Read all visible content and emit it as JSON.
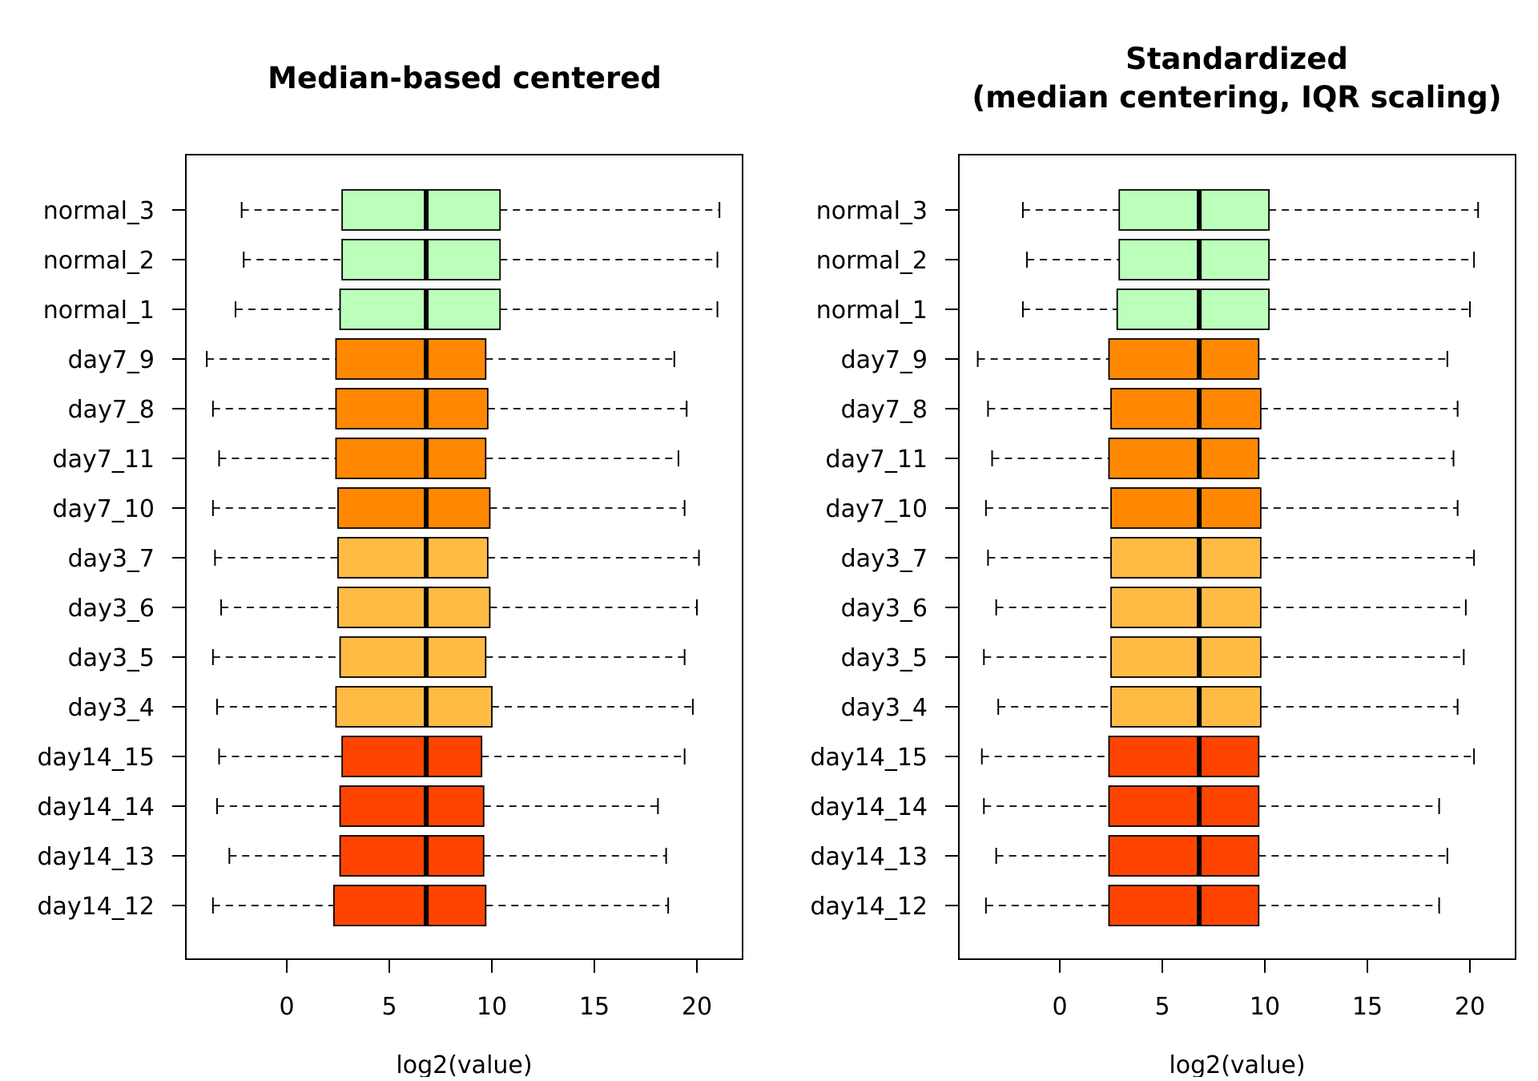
{
  "colors": {
    "normal": "#BBFFBB",
    "day7": "#FF8800",
    "day3": "#FFBB44",
    "day14": "#FF4400"
  },
  "chart_data": [
    {
      "type": "boxplot",
      "orientation": "horizontal",
      "title": "Median-based centered",
      "xlabel": "log2(value)",
      "ylabel": "",
      "xlim": [
        -4.5,
        22.5
      ],
      "xticks": [
        0,
        5,
        10,
        15,
        20
      ],
      "grid": false,
      "legend": "none",
      "series": [
        {
          "name": "normal_3",
          "group": "normal",
          "whisker_low": -2.2,
          "q1": 2.7,
          "median": 6.8,
          "q3": 10.4,
          "whisker_high": 21.1
        },
        {
          "name": "normal_2",
          "group": "normal",
          "whisker_low": -2.1,
          "q1": 2.7,
          "median": 6.8,
          "q3": 10.4,
          "whisker_high": 21.0
        },
        {
          "name": "normal_1",
          "group": "normal",
          "whisker_low": -2.5,
          "q1": 2.6,
          "median": 6.8,
          "q3": 10.4,
          "whisker_high": 21.0
        },
        {
          "name": "day7_9",
          "group": "day7",
          "whisker_low": -3.9,
          "q1": 2.4,
          "median": 6.8,
          "q3": 9.7,
          "whisker_high": 18.9
        },
        {
          "name": "day7_8",
          "group": "day7",
          "whisker_low": -3.6,
          "q1": 2.4,
          "median": 6.8,
          "q3": 9.8,
          "whisker_high": 19.5
        },
        {
          "name": "day7_11",
          "group": "day7",
          "whisker_low": -3.3,
          "q1": 2.4,
          "median": 6.8,
          "q3": 9.7,
          "whisker_high": 19.1
        },
        {
          "name": "day7_10",
          "group": "day7",
          "whisker_low": -3.6,
          "q1": 2.5,
          "median": 6.8,
          "q3": 9.9,
          "whisker_high": 19.4
        },
        {
          "name": "day3_7",
          "group": "day3",
          "whisker_low": -3.5,
          "q1": 2.5,
          "median": 6.8,
          "q3": 9.8,
          "whisker_high": 20.1
        },
        {
          "name": "day3_6",
          "group": "day3",
          "whisker_low": -3.2,
          "q1": 2.5,
          "median": 6.8,
          "q3": 9.9,
          "whisker_high": 20.0
        },
        {
          "name": "day3_5",
          "group": "day3",
          "whisker_low": -3.6,
          "q1": 2.6,
          "median": 6.8,
          "q3": 9.7,
          "whisker_high": 19.4
        },
        {
          "name": "day3_4",
          "group": "day3",
          "whisker_low": -3.4,
          "q1": 2.4,
          "median": 6.8,
          "q3": 10.0,
          "whisker_high": 19.8
        },
        {
          "name": "day14_15",
          "group": "day14",
          "whisker_low": -3.3,
          "q1": 2.7,
          "median": 6.8,
          "q3": 9.5,
          "whisker_high": 19.4
        },
        {
          "name": "day14_14",
          "group": "day14",
          "whisker_low": -3.4,
          "q1": 2.6,
          "median": 6.8,
          "q3": 9.6,
          "whisker_high": 18.1
        },
        {
          "name": "day14_13",
          "group": "day14",
          "whisker_low": -2.8,
          "q1": 2.6,
          "median": 6.8,
          "q3": 9.6,
          "whisker_high": 18.5
        },
        {
          "name": "day14_12",
          "group": "day14",
          "whisker_low": -3.6,
          "q1": 2.3,
          "median": 6.8,
          "q3": 9.7,
          "whisker_high": 18.6
        }
      ]
    },
    {
      "type": "boxplot",
      "orientation": "horizontal",
      "title": "Standardized\n(median centering, IQR scaling)",
      "xlabel": "log2(value)",
      "ylabel": "",
      "xlim": [
        -4.5,
        22.5
      ],
      "xticks": [
        0,
        5,
        10,
        15,
        20
      ],
      "grid": false,
      "legend": "none",
      "series": [
        {
          "name": "normal_3",
          "group": "normal",
          "whisker_low": -1.8,
          "q1": 2.9,
          "median": 6.8,
          "q3": 10.2,
          "whisker_high": 20.4
        },
        {
          "name": "normal_2",
          "group": "normal",
          "whisker_low": -1.6,
          "q1": 2.9,
          "median": 6.8,
          "q3": 10.2,
          "whisker_high": 20.2
        },
        {
          "name": "normal_1",
          "group": "normal",
          "whisker_low": -1.8,
          "q1": 2.8,
          "median": 6.8,
          "q3": 10.2,
          "whisker_high": 20.0
        },
        {
          "name": "day7_9",
          "group": "day7",
          "whisker_low": -4.0,
          "q1": 2.4,
          "median": 6.8,
          "q3": 9.7,
          "whisker_high": 18.9
        },
        {
          "name": "day7_8",
          "group": "day7",
          "whisker_low": -3.5,
          "q1": 2.5,
          "median": 6.8,
          "q3": 9.8,
          "whisker_high": 19.4
        },
        {
          "name": "day7_11",
          "group": "day7",
          "whisker_low": -3.3,
          "q1": 2.4,
          "median": 6.8,
          "q3": 9.7,
          "whisker_high": 19.2
        },
        {
          "name": "day7_10",
          "group": "day7",
          "whisker_low": -3.6,
          "q1": 2.5,
          "median": 6.8,
          "q3": 9.8,
          "whisker_high": 19.4
        },
        {
          "name": "day3_7",
          "group": "day3",
          "whisker_low": -3.5,
          "q1": 2.5,
          "median": 6.8,
          "q3": 9.8,
          "whisker_high": 20.2
        },
        {
          "name": "day3_6",
          "group": "day3",
          "whisker_low": -3.1,
          "q1": 2.5,
          "median": 6.8,
          "q3": 9.8,
          "whisker_high": 19.8
        },
        {
          "name": "day3_5",
          "group": "day3",
          "whisker_low": -3.7,
          "q1": 2.5,
          "median": 6.8,
          "q3": 9.8,
          "whisker_high": 19.7
        },
        {
          "name": "day3_4",
          "group": "day3",
          "whisker_low": -3.0,
          "q1": 2.5,
          "median": 6.8,
          "q3": 9.8,
          "whisker_high": 19.4
        },
        {
          "name": "day14_15",
          "group": "day14",
          "whisker_low": -3.8,
          "q1": 2.4,
          "median": 6.8,
          "q3": 9.7,
          "whisker_high": 20.2
        },
        {
          "name": "day14_14",
          "group": "day14",
          "whisker_low": -3.7,
          "q1": 2.4,
          "median": 6.8,
          "q3": 9.7,
          "whisker_high": 18.5
        },
        {
          "name": "day14_13",
          "group": "day14",
          "whisker_low": -3.1,
          "q1": 2.4,
          "median": 6.8,
          "q3": 9.7,
          "whisker_high": 18.9
        },
        {
          "name": "day14_12",
          "group": "day14",
          "whisker_low": -3.6,
          "q1": 2.4,
          "median": 6.8,
          "q3": 9.7,
          "whisker_high": 18.5
        }
      ]
    }
  ]
}
